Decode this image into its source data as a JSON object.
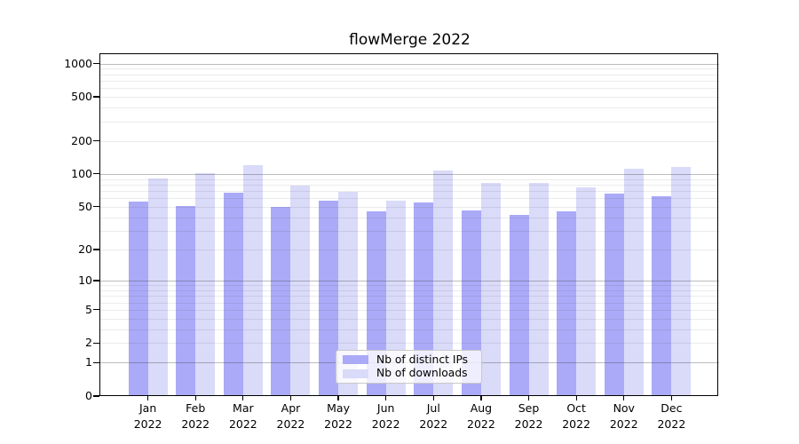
{
  "title": "flowMerge 2022",
  "legend": {
    "items": [
      {
        "label": "Nb of distinct IPs",
        "color": "#aaaaf8"
      },
      {
        "label": "Nb of downloads",
        "color": "#dadaf9"
      }
    ]
  },
  "chart_data": {
    "type": "bar",
    "title": "flowMerge 2022",
    "categories": [
      "Jan",
      "Feb",
      "Mar",
      "Apr",
      "May",
      "Jun",
      "Jul",
      "Aug",
      "Sep",
      "Oct",
      "Nov",
      "Dec"
    ],
    "x_year": "2022",
    "series": [
      {
        "name": "Nb of distinct IPs",
        "color": "#aaaaf8",
        "values": [
          56,
          51,
          68,
          50,
          57,
          45,
          55,
          46,
          42,
          45,
          66,
          63
        ]
      },
      {
        "name": "Nb of downloads",
        "color": "#dadaf9",
        "values": [
          91,
          101,
          121,
          78,
          69,
          57,
          108,
          83,
          83,
          76,
          111,
          115
        ]
      }
    ],
    "y_scale": "log10(1+x)",
    "ylim": [
      0,
      1216
    ],
    "y_tick_values": [
      1000,
      500,
      200,
      100,
      50,
      20,
      10,
      5,
      2,
      1,
      0
    ],
    "y_tick_labels": [
      "1000",
      "500",
      "200",
      "100",
      "50",
      "20",
      "10",
      "5",
      "2",
      "1",
      "0"
    ],
    "grid_major_values": [
      1,
      10,
      100,
      1000
    ],
    "grid_minor_values": [
      2,
      3,
      4,
      5,
      6,
      7,
      8,
      9,
      20,
      30,
      40,
      50,
      60,
      70,
      80,
      90,
      200,
      300,
      400,
      500,
      600,
      700,
      800,
      900
    ],
    "grid": "horizontal, major and minor",
    "legend_position": "lower center inside plot"
  },
  "colors": {
    "background": "#ffffff",
    "bar_distinct_ips": "#aaaaf8",
    "bar_downloads": "#dadaf9",
    "grid_major": "#c2c2c2",
    "grid_minor": "#eaeaea",
    "axis": "#000000",
    "text": "#000000",
    "legend_border": "#c9c9c9"
  }
}
